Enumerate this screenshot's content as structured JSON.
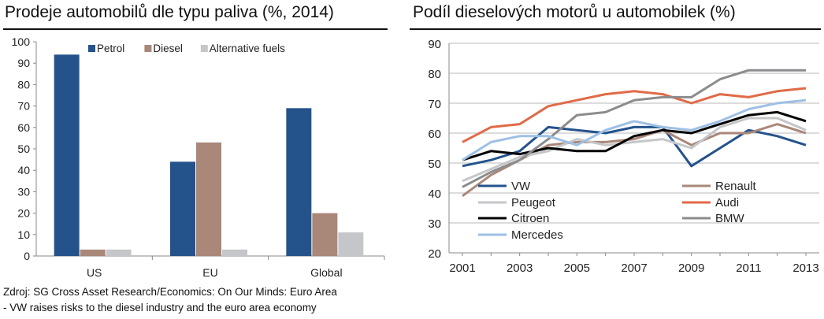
{
  "left_panel": {
    "title": "Prodeje automobilů dle typu paliva (%, 2014)"
  },
  "right_panel": {
    "title": "Podíl dieselových motorů u automobilek (%)"
  },
  "source": {
    "line1": "Zdroj: SG Cross Asset Research/Economics: On Our Minds: Euro Area",
    "line2": "- VW raises risks to the diesel industry and the euro area economy"
  },
  "chart_data": [
    {
      "type": "bar",
      "title": "Prodeje automobilů dle typu paliva (%, 2014)",
      "categories": [
        "US",
        "EU",
        "Global"
      ],
      "series": [
        {
          "name": "Petrol",
          "color": "#24538c",
          "values": [
            94,
            44,
            69
          ]
        },
        {
          "name": "Diesel",
          "color": "#a98779",
          "values": [
            3,
            53,
            20
          ]
        },
        {
          "name": "Alternative fuels",
          "color": "#c5c6c9",
          "values": [
            3,
            3,
            11
          ]
        }
      ],
      "ylim": [
        0,
        100
      ],
      "yticks": [
        "0",
        "10",
        "20",
        "30",
        "40",
        "50",
        "60",
        "70",
        "80",
        "90",
        "100"
      ],
      "legend": "top",
      "grid": false
    },
    {
      "type": "line",
      "title": "Podíl dieselových motorů u automobilek (%)",
      "x": [
        2001,
        2002,
        2003,
        2004,
        2005,
        2006,
        2007,
        2008,
        2009,
        2010,
        2011,
        2012,
        2013
      ],
      "xticks": [
        "2001",
        "2003",
        "2005",
        "2007",
        "2009",
        "2011",
        "2013"
      ],
      "ylim": [
        20,
        90
      ],
      "yticks": [
        "20",
        "30",
        "40",
        "50",
        "60",
        "70",
        "80",
        "90"
      ],
      "grid": true,
      "legend": "bottom-left inside, two columns",
      "series": [
        {
          "name": "VW",
          "color": "#24538c",
          "values": [
            49,
            51,
            54,
            62,
            61,
            60,
            62,
            62,
            49,
            55,
            61,
            59,
            56
          ]
        },
        {
          "name": "Renault",
          "color": "#a98779",
          "values": [
            39,
            46,
            51,
            56,
            57,
            57,
            58,
            61,
            56,
            60,
            60,
            63,
            60
          ]
        },
        {
          "name": "Peugeot",
          "color": "#c5c6c9",
          "values": [
            44,
            48,
            52,
            54,
            58,
            56,
            57,
            58,
            55,
            62,
            65,
            65,
            61
          ]
        },
        {
          "name": "Audi",
          "color": "#e06a47",
          "values": [
            57,
            62,
            63,
            69,
            71,
            73,
            74,
            73,
            70,
            73,
            72,
            74,
            75
          ]
        },
        {
          "name": "Citroen",
          "color": "#000000",
          "values": [
            51,
            54,
            53,
            55,
            54,
            54,
            59,
            61,
            60,
            63,
            66,
            67,
            64
          ]
        },
        {
          "name": "BMW",
          "color": "#8c8c8e",
          "values": [
            42,
            47,
            51,
            58,
            66,
            67,
            71,
            72,
            72,
            78,
            81,
            81,
            81
          ]
        },
        {
          "name": "Mercedes",
          "color": "#9ec0e4",
          "values": [
            51,
            57,
            59,
            59,
            56,
            61,
            64,
            62,
            61,
            64,
            68,
            70,
            71
          ]
        }
      ]
    }
  ]
}
